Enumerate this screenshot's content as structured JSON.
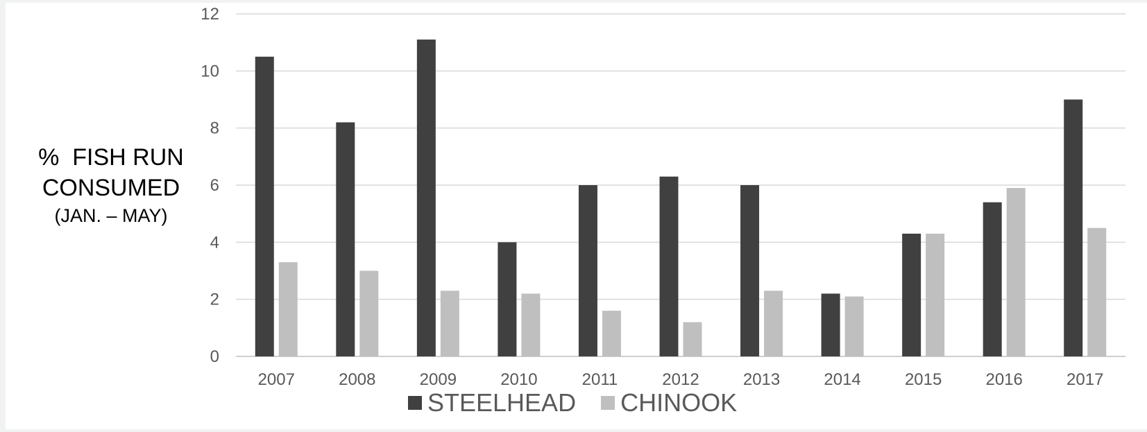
{
  "chart_data": {
    "type": "bar",
    "title": "",
    "xlabel": "",
    "ylabel": {
      "line1": "%  FISH RUN",
      "line2": "CONSUMED",
      "line3": "(JAN. – MAY)"
    },
    "categories": [
      "2007",
      "2008",
      "2009",
      "2010",
      "2011",
      "2012",
      "2013",
      "2014",
      "2015",
      "2016",
      "2017"
    ],
    "series": [
      {
        "name": "STEELHEAD",
        "color": "#404040",
        "values": [
          10.5,
          8.2,
          11.1,
          4.0,
          6.0,
          6.3,
          6.0,
          2.2,
          4.3,
          5.4,
          9.0
        ]
      },
      {
        "name": "CHINOOK",
        "color": "#bfbfbf",
        "values": [
          3.3,
          3.0,
          2.3,
          2.2,
          1.6,
          1.2,
          2.3,
          2.1,
          4.3,
          5.9,
          4.5
        ]
      }
    ],
    "ylim": [
      0,
      12
    ],
    "yticks": [
      0,
      2,
      4,
      6,
      8,
      10,
      12
    ],
    "grid": true,
    "legend_position": "bottom"
  }
}
